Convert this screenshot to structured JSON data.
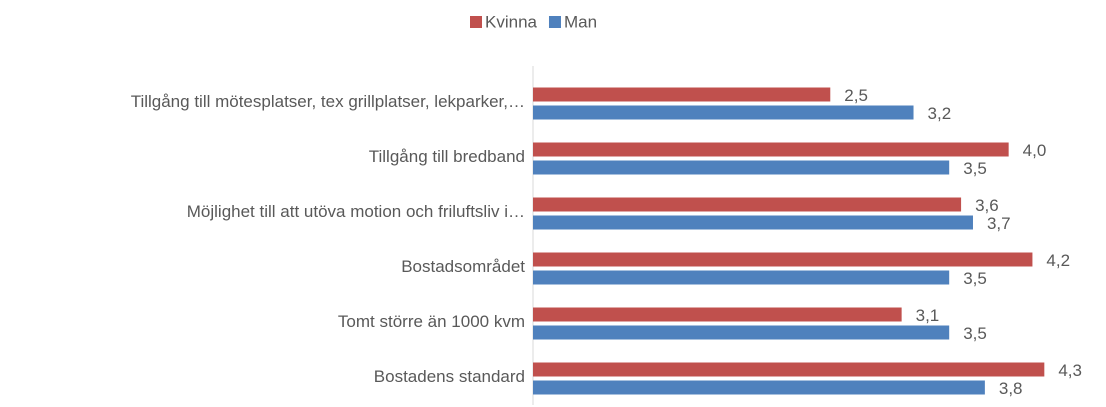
{
  "chart_data": {
    "type": "hbar",
    "categories": [
      "Tillgång till mötesplatser, tex grillplatser, lekparker,…",
      "Tillgång till bredband",
      "Möjlighet till att utöva motion och friluftsliv i…",
      "Bostadsområdet",
      "Tomt större än 1000 kvm",
      "Bostadens standard"
    ],
    "series": [
      {
        "name": "Kvinna",
        "color": "#c0504d",
        "values": [
          2.5,
          4.0,
          3.6,
          4.2,
          3.1,
          4.3
        ],
        "value_labels": [
          "2,5",
          "4,0",
          "3,6",
          "4,2",
          "3,1",
          "4,3"
        ]
      },
      {
        "name": "Man",
        "color": "#4f81bd",
        "values": [
          3.2,
          3.5,
          3.7,
          3.5,
          3.5,
          3.8
        ],
        "value_labels": [
          "3,2",
          "3,5",
          "3,7",
          "3,5",
          "3,5",
          "3,8"
        ]
      }
    ],
    "xlim": [
      0,
      4.6
    ],
    "legend": "top"
  }
}
